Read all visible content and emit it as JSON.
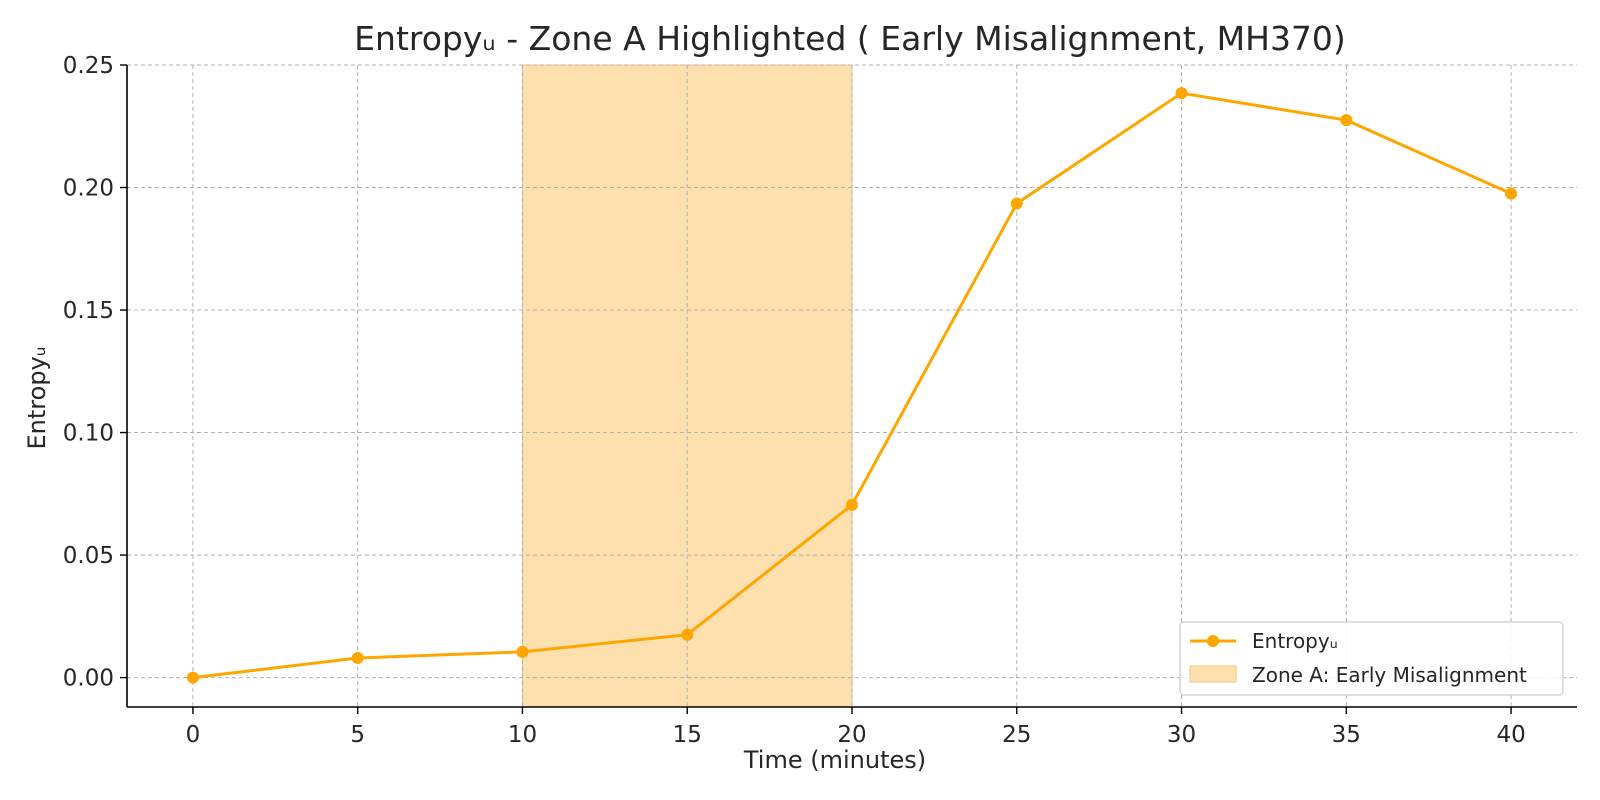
{
  "chart_data": {
    "type": "line",
    "title": "Entropyᵤ - Zone A Highlighted ( Early Misalignment, MH370)",
    "xlabel": "Time (minutes)",
    "ylabel": "Entropyᵤ",
    "xlim": [
      -2,
      42
    ],
    "ylim": [
      -0.012,
      0.25
    ],
    "xticks": [
      0,
      5,
      10,
      15,
      20,
      25,
      30,
      35,
      40
    ],
    "yticks": [
      0.0,
      0.05,
      0.1,
      0.15,
      0.2,
      0.25
    ],
    "ytick_labels": [
      "0.00",
      "0.05",
      "0.10",
      "0.15",
      "0.20",
      "0.25"
    ],
    "grid": true,
    "legend_position": "bottom-right",
    "series": [
      {
        "name": "Entropyᵤ",
        "color": "#FFA500",
        "x": [
          0,
          5,
          10,
          15,
          20,
          25,
          30,
          35,
          40
        ],
        "y": [
          0.0,
          0.008,
          0.0105,
          0.0175,
          0.0705,
          0.1935,
          0.2385,
          0.2275,
          0.1975
        ]
      }
    ],
    "highlight": {
      "name": "Zone A: Early Misalignment",
      "x_start": 10,
      "x_end": 20,
      "color": "#FDE0AE"
    }
  }
}
